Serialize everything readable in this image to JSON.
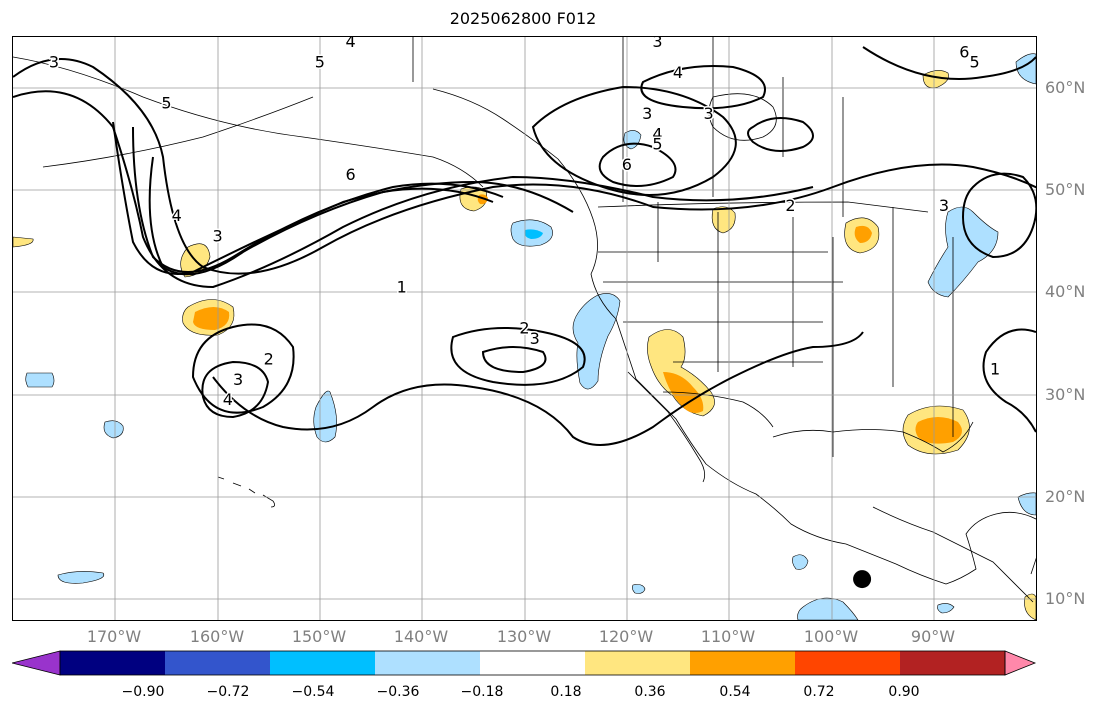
{
  "title": "2025062800 F012",
  "map": {
    "lon_range": [
      -180,
      -80
    ],
    "lat_range": [
      8,
      65
    ],
    "lat_ticks": [
      {
        "value": 60,
        "label": "60°N"
      },
      {
        "value": 50,
        "label": "50°N"
      },
      {
        "value": 40,
        "label": "40°N"
      },
      {
        "value": 30,
        "label": "30°N"
      },
      {
        "value": 20,
        "label": "20°N"
      },
      {
        "value": 10,
        "label": "10°N"
      }
    ],
    "lon_ticks": [
      {
        "value": -170,
        "label": "170°W"
      },
      {
        "value": -160,
        "label": "160°W"
      },
      {
        "value": -150,
        "label": "150°W"
      },
      {
        "value": -140,
        "label": "140°W"
      },
      {
        "value": -130,
        "label": "130°W"
      },
      {
        "value": -120,
        "label": "120°W"
      },
      {
        "value": -110,
        "label": "110°W"
      },
      {
        "value": -100,
        "label": "100°W"
      },
      {
        "value": -90,
        "label": "90°W"
      }
    ],
    "gridlines": true,
    "contour_labels": [
      {
        "text": "3",
        "lon": -176,
        "lat": 62
      },
      {
        "text": "5",
        "lon": -165,
        "lat": 58
      },
      {
        "text": "4",
        "lon": -147,
        "lat": 64
      },
      {
        "text": "5",
        "lon": -150,
        "lat": 62
      },
      {
        "text": "6",
        "lon": -147,
        "lat": 51
      },
      {
        "text": "4",
        "lon": -164,
        "lat": 47
      },
      {
        "text": "3",
        "lon": -160,
        "lat": 45
      },
      {
        "text": "1",
        "lon": -142,
        "lat": 40
      },
      {
        "text": "2",
        "lon": -155,
        "lat": 33
      },
      {
        "text": "3",
        "lon": -158,
        "lat": 31
      },
      {
        "text": "4",
        "lon": -159,
        "lat": 29
      },
      {
        "text": "2",
        "lon": -130,
        "lat": 36
      },
      {
        "text": "3",
        "lon": -129,
        "lat": 35
      },
      {
        "text": "3",
        "lon": -117,
        "lat": 64
      },
      {
        "text": "4",
        "lon": -115,
        "lat": 61
      },
      {
        "text": "3",
        "lon": -118,
        "lat": 57
      },
      {
        "text": "4",
        "lon": -117,
        "lat": 55
      },
      {
        "text": "5",
        "lon": -117,
        "lat": 54
      },
      {
        "text": "6",
        "lon": -120,
        "lat": 52
      },
      {
        "text": "3",
        "lon": -112,
        "lat": 57
      },
      {
        "text": "2",
        "lon": -104,
        "lat": 48
      },
      {
        "text": "3",
        "lon": -89,
        "lat": 48
      },
      {
        "text": "6",
        "lon": -87,
        "lat": 63
      },
      {
        "text": "5",
        "lon": -86,
        "lat": 62
      },
      {
        "text": "1",
        "lon": -84,
        "lat": 32
      }
    ],
    "marker": {
      "name": "black-dot",
      "lon": -97,
      "lat": 12
    }
  },
  "colorbar": {
    "colors": [
      "#9933cc",
      "#000080",
      "#3355cc",
      "#00bfff",
      "#aee0ff",
      "#ffffff",
      "#ffe680",
      "#ffa000",
      "#ff4500",
      "#b22222",
      "#ff88aa"
    ],
    "ticks": [
      "−0.90",
      "−0.72",
      "−0.54",
      "−0.36",
      "−0.18",
      "0.18",
      "0.36",
      "0.54",
      "0.72",
      "0.90"
    ],
    "extend": "both"
  }
}
